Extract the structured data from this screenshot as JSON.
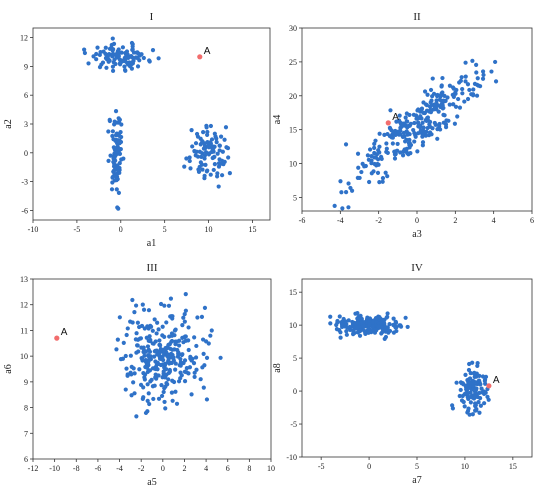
{
  "chart_data": [
    {
      "type": "scatter",
      "title": "I",
      "xlabel": "a1",
      "ylabel": "a2",
      "xlim": [
        -10,
        17
      ],
      "ylim": [
        -7,
        13
      ],
      "xticks": [
        -10,
        -5,
        0,
        5,
        10,
        15
      ],
      "yticks": [
        -6,
        -3,
        0,
        3,
        6,
        9,
        12
      ],
      "point_color": "#2f72c8",
      "highlight_color": "#f26d6d",
      "highlight": {
        "label": "A",
        "x": 9,
        "y": 10
      },
      "clusters": [
        {
          "cx": 0,
          "cy": 10,
          "sx": 3.0,
          "sy": 0.7,
          "n": 110
        },
        {
          "cx": -0.5,
          "cy": 0,
          "sx": 0.7,
          "sy": 2.5,
          "n": 95
        },
        {
          "cx": 10,
          "cy": 0,
          "sx": 2.2,
          "sy": 1.6,
          "n": 95
        }
      ]
    },
    {
      "type": "scatter",
      "title": "II",
      "xlabel": "a3",
      "ylabel": "a4",
      "xlim": [
        -6,
        6
      ],
      "ylim": [
        3,
        30
      ],
      "xticks": [
        -6,
        -4,
        -2,
        0,
        2,
        4,
        6
      ],
      "yticks": [
        5,
        10,
        15,
        20,
        25,
        30
      ],
      "point_color": "#2f72c8",
      "highlight_color": "#f26d6d",
      "highlight": {
        "label": "A",
        "x": -1.5,
        "y": 16
      },
      "correlated": {
        "n": 300,
        "mx": 0,
        "my": 15.5,
        "sx": 1.6,
        "slope": 2.2,
        "noise": 1.9
      }
    },
    {
      "type": "scatter",
      "title": "III",
      "xlabel": "a5",
      "ylabel": "a6",
      "xlim": [
        -12,
        10
      ],
      "ylim": [
        6,
        13
      ],
      "xticks": [
        -12,
        -10,
        -8,
        -6,
        -4,
        -2,
        0,
        2,
        4,
        6,
        8,
        10
      ],
      "yticks": [
        6,
        7,
        8,
        9,
        10,
        11,
        12,
        13
      ],
      "point_color": "#2f72c8",
      "highlight_color": "#f26d6d",
      "highlight": {
        "label": "A",
        "x": -9.8,
        "y": 10.7
      },
      "clusters": [
        {
          "cx": 0,
          "cy": 10,
          "sx": 3.2,
          "sy": 0.9,
          "n": 300
        }
      ]
    },
    {
      "type": "scatter",
      "title": "IV",
      "xlabel": "a7",
      "ylabel": "a8",
      "xlim": [
        -7,
        17
      ],
      "ylim": [
        -10,
        17
      ],
      "xticks": [
        -5,
        0,
        5,
        10,
        15
      ],
      "yticks": [
        -10,
        -5,
        0,
        5,
        10,
        15
      ],
      "point_color": "#2f72c8",
      "highlight_color": "#f26d6d",
      "highlight": {
        "label": "A",
        "x": 12.5,
        "y": 0.8
      },
      "clusters": [
        {
          "cx": 0,
          "cy": 10,
          "sx": 3.0,
          "sy": 0.8,
          "n": 200
        },
        {
          "cx": 11,
          "cy": 0,
          "sx": 1.6,
          "sy": 2.0,
          "n": 110
        }
      ]
    }
  ]
}
